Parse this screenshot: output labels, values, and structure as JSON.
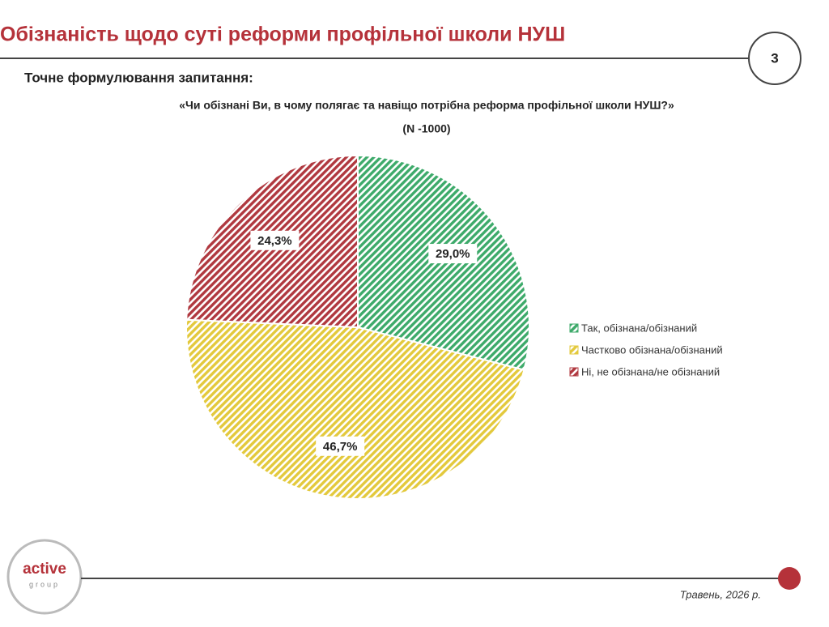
{
  "header": {
    "title": "Обізнаність щодо суті реформи профільної школи НУШ",
    "page": "3"
  },
  "question": {
    "label": "Точне формулювання запитання:",
    "text": "«Чи обізнані Ви, в чому полягає та навіщо потрібна реформа профільної школи НУШ?»",
    "sample": "(N -1000)"
  },
  "chart_data": {
    "type": "pie",
    "categories": [
      "Так, обізнана/обізнаний",
      "Частково обізнана/обізнаний",
      "Ні, не обізнана/не обізнаний"
    ],
    "values": [
      29.0,
      46.7,
      24.3
    ],
    "value_labels": [
      "29,0%",
      "46,7%",
      "24,3%"
    ],
    "colors": [
      "#3daa6a",
      "#e3c93c",
      "#b0383f"
    ],
    "legend": "right"
  },
  "footer": {
    "logo": "active",
    "logo_sub": "group",
    "date": "Травень, 2026 р."
  }
}
